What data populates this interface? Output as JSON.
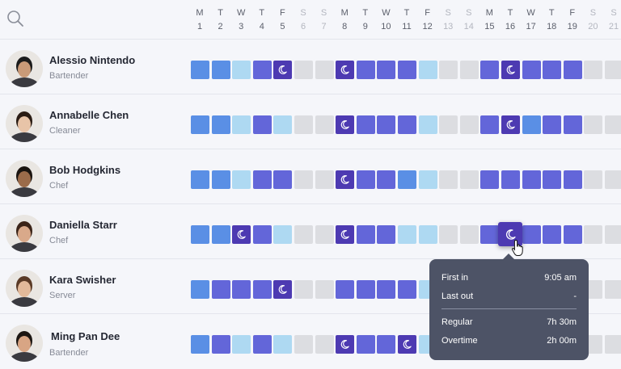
{
  "header": {
    "days": [
      {
        "letter": "M",
        "num": "1",
        "weekend": false
      },
      {
        "letter": "T",
        "num": "2",
        "weekend": false
      },
      {
        "letter": "W",
        "num": "3",
        "weekend": false
      },
      {
        "letter": "T",
        "num": "4",
        "weekend": false
      },
      {
        "letter": "F",
        "num": "5",
        "weekend": false
      },
      {
        "letter": "S",
        "num": "6",
        "weekend": true
      },
      {
        "letter": "S",
        "num": "7",
        "weekend": true
      },
      {
        "letter": "M",
        "num": "8",
        "weekend": false
      },
      {
        "letter": "T",
        "num": "9",
        "weekend": false
      },
      {
        "letter": "W",
        "num": "10",
        "weekend": false
      },
      {
        "letter": "T",
        "num": "11",
        "weekend": false
      },
      {
        "letter": "F",
        "num": "12",
        "weekend": false
      },
      {
        "letter": "S",
        "num": "13",
        "weekend": true
      },
      {
        "letter": "S",
        "num": "14",
        "weekend": true
      },
      {
        "letter": "M",
        "num": "15",
        "weekend": false
      },
      {
        "letter": "T",
        "num": "16",
        "weekend": false
      },
      {
        "letter": "W",
        "num": "17",
        "weekend": false
      },
      {
        "letter": "T",
        "num": "18",
        "weekend": false
      },
      {
        "letter": "F",
        "num": "19",
        "weekend": false
      },
      {
        "letter": "S",
        "num": "20",
        "weekend": true
      },
      {
        "letter": "S",
        "num": "21",
        "weekend": true
      }
    ]
  },
  "colors": {
    "b": "#5a8fe5",
    "l": "#aed9f2",
    "i": "#6366d9",
    "p": "#4d3ab2",
    "g": "#dcdde1",
    "tooltip_bg": "#4d5366",
    "background": "#f5f6fa"
  },
  "legend_note": "cell codes: b=blue, l=light blue, i=indigo, p=purple night shift (moon-icon), g=grey off",
  "employees": [
    {
      "name": "Alessio Nintendo",
      "role": "Bartender",
      "avatar_skin": "#c99a78",
      "avatar_hair": "#1b1b1b",
      "days": [
        "b",
        "b",
        "l",
        "i",
        "p",
        "g",
        "g",
        "p",
        "i",
        "i",
        "i",
        "l",
        "g",
        "g",
        "i",
        "p",
        "i",
        "i",
        "i",
        "g",
        "g"
      ]
    },
    {
      "name": "Annabelle Chen",
      "role": "Cleaner",
      "avatar_skin": "#e8c4a8",
      "avatar_hair": "#2a1c14",
      "days": [
        "b",
        "b",
        "l",
        "i",
        "l",
        "g",
        "g",
        "p",
        "i",
        "i",
        "i",
        "l",
        "g",
        "g",
        "i",
        "p",
        "b",
        "i",
        "i",
        "g",
        "g"
      ]
    },
    {
      "name": "Bob Hodgkins",
      "role": "Chef",
      "avatar_skin": "#9b6b4a",
      "avatar_hair": "#1a1410",
      "days": [
        "b",
        "b",
        "l",
        "i",
        "i",
        "g",
        "g",
        "p",
        "i",
        "i",
        "b",
        "l",
        "g",
        "g",
        "i",
        "i",
        "i",
        "i",
        "i",
        "g",
        "g"
      ]
    },
    {
      "name": "Daniella Starr",
      "role": "Chef",
      "avatar_skin": "#d9a98a",
      "avatar_hair": "#3b2418",
      "days": [
        "b",
        "b",
        "p",
        "i",
        "l",
        "g",
        "g",
        "p",
        "i",
        "i",
        "l",
        "l",
        "g",
        "g",
        "i",
        "p",
        "i",
        "i",
        "i",
        "g",
        "g"
      ]
    },
    {
      "name": "Kara Swisher",
      "role": "Server",
      "avatar_skin": "#e2b99a",
      "avatar_hair": "#5a3a26",
      "days": [
        "b",
        "i",
        "i",
        "i",
        "p",
        "g",
        "g",
        "i",
        "i",
        "i",
        "i",
        "l",
        "g",
        "g",
        "i",
        "i",
        "i",
        "i",
        "i",
        "g",
        "g"
      ]
    },
    {
      "name": "Ming Pan Dee",
      "role": "Bartender",
      "avatar_skin": "#d8a584",
      "avatar_hair": "#1c1612",
      "days": [
        "b",
        "i",
        "l",
        "i",
        "l",
        "g",
        "g",
        "p",
        "i",
        "i",
        "p",
        "l",
        "g",
        "g",
        "i",
        "i",
        "i",
        "i",
        "i",
        "g",
        "g"
      ]
    }
  ],
  "tooltip": {
    "first_in_label": "First in",
    "first_in_value": "9:05 am",
    "last_out_label": "Last out",
    "last_out_value": "-",
    "regular_label": "Regular",
    "regular_value": "7h 30m",
    "overtime_label": "Overtime",
    "overtime_value": "2h 00m"
  }
}
